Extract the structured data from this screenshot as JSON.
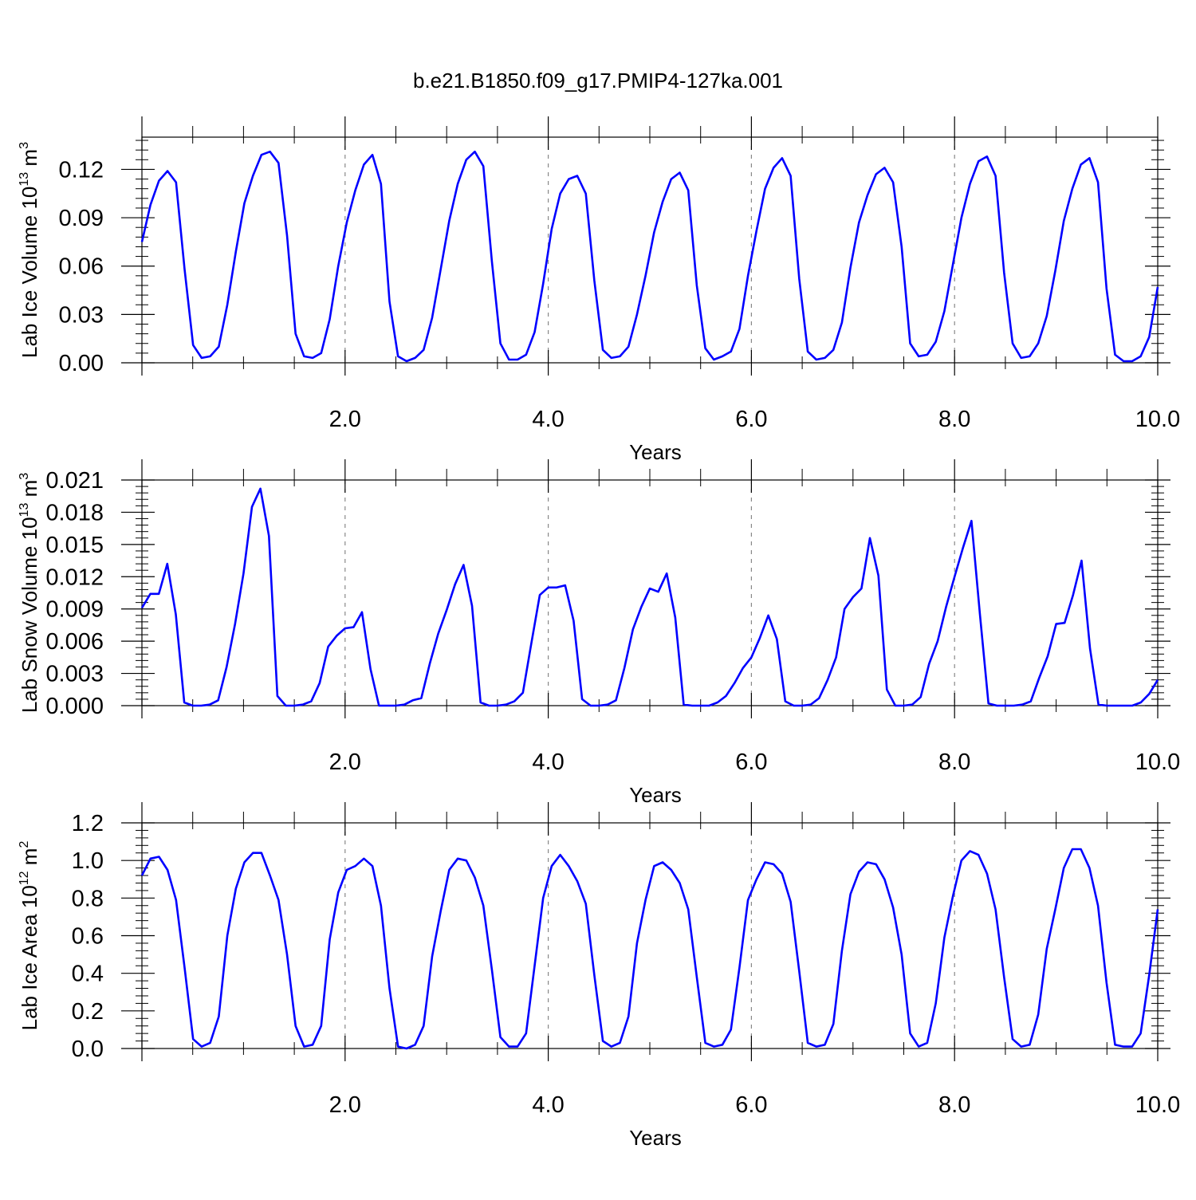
{
  "figure": {
    "title": "b.e21.B1850.f09_g17.PMIP4-127ka.001",
    "line_color": "#0000ff",
    "reference_line_color": "#888888"
  },
  "chart_data": [
    {
      "type": "line",
      "ylabel": "Lab Ice Volume",
      "ylabel_unit_base": "10",
      "ylabel_unit_exp": "13",
      "ylabel_unit_suffix": "m",
      "ylabel_unit_suffix_exp": "3",
      "xlabel": "Years",
      "xlim": [
        0.0,
        10.0
      ],
      "ylim": [
        0.0,
        0.14
      ],
      "x_ticks": [
        "2.0",
        "4.0",
        "6.0",
        "8.0",
        "10.0"
      ],
      "y_ticks": [
        "0.00",
        "0.03",
        "0.06",
        "0.09",
        "0.12"
      ],
      "series": [
        {
          "values": [
            0.075,
            0.098,
            0.113,
            0.119,
            0.112,
            0.058,
            0.011,
            0.003,
            0.004,
            0.01,
            0.036,
            0.069,
            0.099,
            0.116,
            0.129,
            0.131,
            0.124,
            0.079,
            0.018,
            0.004,
            0.003,
            0.006,
            0.027,
            0.06,
            0.087,
            0.107,
            0.123,
            0.129,
            0.111,
            0.038,
            0.004,
            0.001,
            0.003,
            0.008,
            0.028,
            0.058,
            0.088,
            0.111,
            0.126,
            0.131,
            0.122,
            0.063,
            0.012,
            0.002,
            0.002,
            0.005,
            0.019,
            0.049,
            0.083,
            0.105,
            0.114,
            0.116,
            0.105,
            0.051,
            0.008,
            0.003,
            0.004,
            0.01,
            0.03,
            0.054,
            0.081,
            0.1,
            0.114,
            0.118,
            0.107,
            0.048,
            0.009,
            0.002,
            0.004,
            0.007,
            0.021,
            0.054,
            0.082,
            0.108,
            0.121,
            0.127,
            0.116,
            0.052,
            0.007,
            0.002,
            0.003,
            0.008,
            0.025,
            0.059,
            0.087,
            0.104,
            0.117,
            0.121,
            0.112,
            0.072,
            0.012,
            0.004,
            0.005,
            0.013,
            0.032,
            0.061,
            0.09,
            0.111,
            0.125,
            0.128,
            0.116,
            0.056,
            0.012,
            0.003,
            0.004,
            0.012,
            0.029,
            0.057,
            0.088,
            0.108,
            0.123,
            0.127,
            0.112,
            0.046,
            0.005,
            0.001,
            0.001,
            0.004,
            0.016,
            0.047
          ]
        }
      ]
    },
    {
      "type": "line",
      "ylabel": "Lab Snow Volume",
      "ylabel_unit_base": "10",
      "ylabel_unit_exp": "13",
      "ylabel_unit_suffix": "m",
      "ylabel_unit_suffix_exp": "3",
      "xlabel": "Years",
      "xlim": [
        0.0,
        10.0
      ],
      "ylim": [
        0.0,
        0.021
      ],
      "x_ticks": [
        "2.0",
        "4.0",
        "6.0",
        "8.0",
        "10.0"
      ],
      "y_ticks": [
        "0.000",
        "0.003",
        "0.006",
        "0.009",
        "0.012",
        "0.015",
        "0.018",
        "0.021"
      ],
      "series": [
        {
          "values": [
            0.0091,
            0.0104,
            0.0104,
            0.0132,
            0.0085,
            0.0003,
            0.0,
            0.0,
            0.0001,
            0.0005,
            0.0036,
            0.0076,
            0.0123,
            0.0185,
            0.0202,
            0.0158,
            0.0009,
            0.0,
            0.0,
            0.0001,
            0.0004,
            0.0021,
            0.0055,
            0.0065,
            0.0072,
            0.0073,
            0.0087,
            0.0034,
            0.0,
            0.0,
            0.0,
            0.0001,
            0.0005,
            0.0007,
            0.0039,
            0.0067,
            0.0089,
            0.0113,
            0.0131,
            0.0093,
            0.0003,
            0.0,
            0.0,
            0.0001,
            0.0004,
            0.0012,
            0.0058,
            0.0103,
            0.011,
            0.011,
            0.0112,
            0.0079,
            0.0006,
            0.0,
            0.0,
            0.0001,
            0.0005,
            0.0035,
            0.0071,
            0.0092,
            0.0109,
            0.0106,
            0.0123,
            0.0082,
            0.0001,
            0.0,
            0.0,
            0.0,
            0.0003,
            0.0009,
            0.0021,
            0.0035,
            0.0045,
            0.0063,
            0.0084,
            0.0062,
            0.0004,
            0.0,
            0.0,
            0.0001,
            0.0007,
            0.0024,
            0.0045,
            0.009,
            0.0101,
            0.0109,
            0.0156,
            0.0121,
            0.0015,
            0.0,
            0.0,
            0.0001,
            0.0008,
            0.0039,
            0.006,
            0.0092,
            0.012,
            0.0147,
            0.0172,
            0.0085,
            0.0002,
            0.0,
            0.0,
            0.0,
            0.0001,
            0.0004,
            0.0026,
            0.0046,
            0.0076,
            0.0077,
            0.0103,
            0.0135,
            0.0053,
            0.0001,
            0.0,
            0.0,
            0.0,
            0.0,
            0.0003,
            0.0011,
            0.0024
          ]
        }
      ]
    },
    {
      "type": "line",
      "ylabel": "Lab Ice Area",
      "ylabel_unit_base": "10",
      "ylabel_unit_exp": "12",
      "ylabel_unit_suffix": "m",
      "ylabel_unit_suffix_exp": "2",
      "xlabel": "Years",
      "xlim": [
        0.0,
        10.0
      ],
      "ylim": [
        0.0,
        1.2
      ],
      "x_ticks": [
        "2.0",
        "4.0",
        "6.0",
        "8.0",
        "10.0"
      ],
      "y_ticks": [
        "0.0",
        "0.2",
        "0.4",
        "0.6",
        "0.8",
        "1.0",
        "1.2"
      ],
      "series": [
        {
          "values": [
            0.92,
            1.01,
            1.02,
            0.95,
            0.79,
            0.43,
            0.05,
            0.01,
            0.03,
            0.17,
            0.6,
            0.85,
            0.99,
            1.04,
            1.04,
            0.92,
            0.79,
            0.5,
            0.12,
            0.01,
            0.02,
            0.12,
            0.58,
            0.83,
            0.95,
            0.97,
            1.01,
            0.97,
            0.76,
            0.32,
            0.01,
            0.0,
            0.02,
            0.12,
            0.49,
            0.73,
            0.95,
            1.01,
            1.0,
            0.91,
            0.76,
            0.42,
            0.06,
            0.01,
            0.01,
            0.08,
            0.44,
            0.8,
            0.97,
            1.03,
            0.97,
            0.89,
            0.77,
            0.39,
            0.04,
            0.01,
            0.03,
            0.17,
            0.56,
            0.79,
            0.97,
            0.99,
            0.95,
            0.88,
            0.74,
            0.38,
            0.03,
            0.01,
            0.02,
            0.1,
            0.43,
            0.79,
            0.9,
            0.99,
            0.98,
            0.93,
            0.78,
            0.41,
            0.03,
            0.01,
            0.02,
            0.13,
            0.52,
            0.82,
            0.94,
            0.99,
            0.98,
            0.9,
            0.75,
            0.5,
            0.08,
            0.01,
            0.03,
            0.24,
            0.59,
            0.81,
            1.0,
            1.05,
            1.03,
            0.93,
            0.74,
            0.38,
            0.05,
            0.01,
            0.02,
            0.18,
            0.53,
            0.74,
            0.96,
            1.06,
            1.06,
            0.96,
            0.76,
            0.35,
            0.02,
            0.01,
            0.01,
            0.08,
            0.39,
            0.74
          ]
        }
      ]
    }
  ]
}
